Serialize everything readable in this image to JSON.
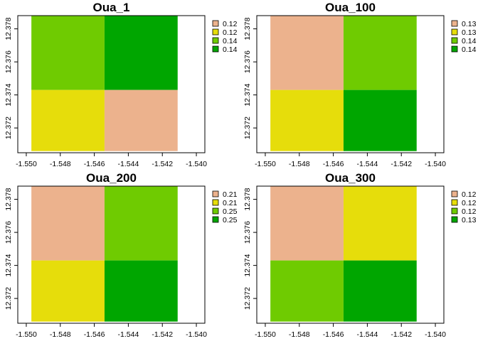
{
  "chart_data": [
    {
      "type": "heatmap",
      "title": "Oua_1",
      "x_ticks": [
        "-1.550",
        "-1.548",
        "-1.546",
        "-1.544",
        "-1.542",
        "-1.540"
      ],
      "y_ticks": [
        "12.372",
        "12.374",
        "12.376",
        "12.378"
      ],
      "xlim": [
        -1.5505,
        -1.5395
      ],
      "ylim": [
        12.3705,
        12.3788
      ],
      "x_edges": [
        -1.5497,
        -1.5454,
        -1.5411
      ],
      "y_edges": [
        12.3706,
        12.3743,
        12.3788
      ],
      "grid": false,
      "legend_position": "right",
      "legend": [
        {
          "label": "0.12",
          "color": "#ECB28D"
        },
        {
          "label": "0.12",
          "color": "#E6DD0B"
        },
        {
          "label": "0.14",
          "color": "#6FCB01"
        },
        {
          "label": "0.14",
          "color": "#00A600"
        }
      ],
      "cells": [
        {
          "row": "top",
          "col": "left",
          "color": "#6FCB01"
        },
        {
          "row": "top",
          "col": "right",
          "color": "#00A600"
        },
        {
          "row": "bottom",
          "col": "left",
          "color": "#E6DD0B"
        },
        {
          "row": "bottom",
          "col": "right",
          "color": "#ECB28D"
        }
      ]
    },
    {
      "type": "heatmap",
      "title": "Oua_100",
      "x_ticks": [
        "-1.550",
        "-1.548",
        "-1.546",
        "-1.544",
        "-1.542",
        "-1.540"
      ],
      "y_ticks": [
        "12.372",
        "12.374",
        "12.376",
        "12.378"
      ],
      "xlim": [
        -1.5505,
        -1.5395
      ],
      "ylim": [
        12.3705,
        12.3788
      ],
      "x_edges": [
        -1.5497,
        -1.5454,
        -1.5411
      ],
      "y_edges": [
        12.3706,
        12.3743,
        12.3788
      ],
      "grid": false,
      "legend_position": "right",
      "legend": [
        {
          "label": "0.13",
          "color": "#ECB28D"
        },
        {
          "label": "0.13",
          "color": "#E6DD0B"
        },
        {
          "label": "0.14",
          "color": "#6FCB01"
        },
        {
          "label": "0.14",
          "color": "#00A600"
        }
      ],
      "cells": [
        {
          "row": "top",
          "col": "left",
          "color": "#ECB28D"
        },
        {
          "row": "top",
          "col": "right",
          "color": "#6FCB01"
        },
        {
          "row": "bottom",
          "col": "left",
          "color": "#E6DD0B"
        },
        {
          "row": "bottom",
          "col": "right",
          "color": "#00A600"
        }
      ]
    },
    {
      "type": "heatmap",
      "title": "Oua_200",
      "x_ticks": [
        "-1.550",
        "-1.548",
        "-1.546",
        "-1.544",
        "-1.542",
        "-1.540"
      ],
      "y_ticks": [
        "12.372",
        "12.374",
        "12.376",
        "12.378"
      ],
      "xlim": [
        -1.5505,
        -1.5395
      ],
      "ylim": [
        12.3705,
        12.3788
      ],
      "x_edges": [
        -1.5497,
        -1.5454,
        -1.5411
      ],
      "y_edges": [
        12.3706,
        12.3743,
        12.3788
      ],
      "grid": false,
      "legend_position": "right",
      "legend": [
        {
          "label": "0.21",
          "color": "#ECB28D"
        },
        {
          "label": "0.21",
          "color": "#E6DD0B"
        },
        {
          "label": "0.25",
          "color": "#6FCB01"
        },
        {
          "label": "0.25",
          "color": "#00A600"
        }
      ],
      "cells": [
        {
          "row": "top",
          "col": "left",
          "color": "#ECB28D"
        },
        {
          "row": "top",
          "col": "right",
          "color": "#6FCB01"
        },
        {
          "row": "bottom",
          "col": "left",
          "color": "#E6DD0B"
        },
        {
          "row": "bottom",
          "col": "right",
          "color": "#00A600"
        }
      ]
    },
    {
      "type": "heatmap",
      "title": "Oua_300",
      "x_ticks": [
        "-1.550",
        "-1.548",
        "-1.546",
        "-1.544",
        "-1.542",
        "-1.540"
      ],
      "y_ticks": [
        "12.372",
        "12.374",
        "12.376",
        "12.378"
      ],
      "xlim": [
        -1.5505,
        -1.5395
      ],
      "ylim": [
        12.3705,
        12.3788
      ],
      "x_edges": [
        -1.5497,
        -1.5454,
        -1.5411
      ],
      "y_edges": [
        12.3706,
        12.3743,
        12.3788
      ],
      "grid": false,
      "legend_position": "right",
      "legend": [
        {
          "label": "0.12",
          "color": "#ECB28D"
        },
        {
          "label": "0.12",
          "color": "#E6DD0B"
        },
        {
          "label": "0.12",
          "color": "#6FCB01"
        },
        {
          "label": "0.13",
          "color": "#00A600"
        }
      ],
      "cells": [
        {
          "row": "top",
          "col": "left",
          "color": "#ECB28D"
        },
        {
          "row": "top",
          "col": "right",
          "color": "#E6DD0B"
        },
        {
          "row": "bottom",
          "col": "left",
          "color": "#6FCB01"
        },
        {
          "row": "bottom",
          "col": "right",
          "color": "#00A600"
        }
      ]
    }
  ]
}
